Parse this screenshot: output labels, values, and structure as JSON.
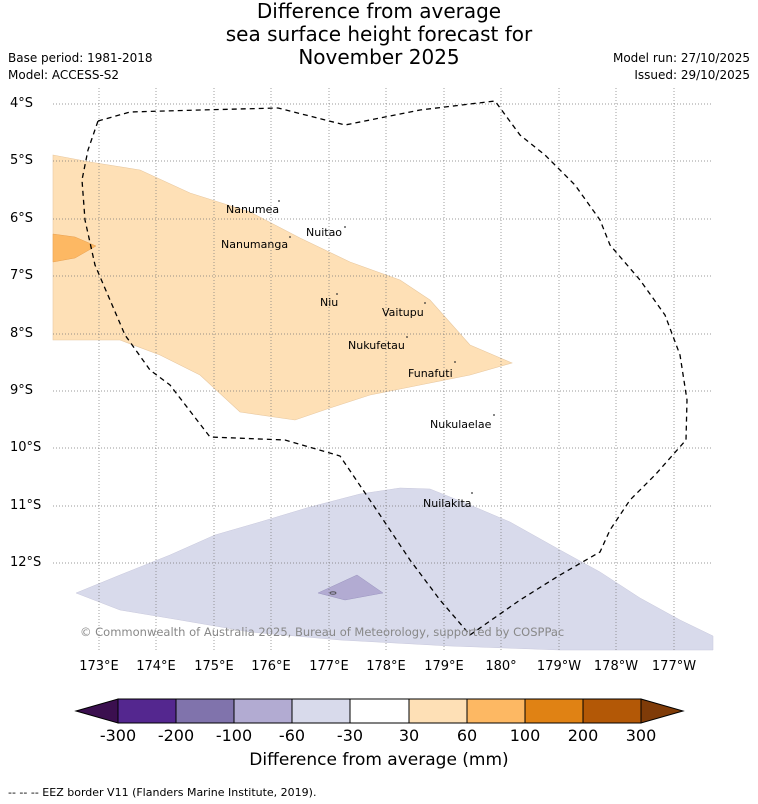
{
  "header": {
    "title_lines": [
      "Difference from average",
      "sea surface height forecast for",
      "November 2025"
    ],
    "base_period": "Base period: 1981-2018",
    "model": "Model: ACCESS-S2",
    "model_run": "Model run: 27/10/2025",
    "issued": "Issued: 29/10/2025"
  },
  "map": {
    "lat_labels": [
      "4°S",
      "5°S",
      "6°S",
      "7°S",
      "8°S",
      "9°S",
      "10°S",
      "11°S",
      "12°S"
    ],
    "lon_labels": [
      "173°E",
      "174°E",
      "175°E",
      "176°E",
      "177°E",
      "178°E",
      "179°E",
      "180°",
      "179°W",
      "178°W",
      "177°W"
    ],
    "places": [
      "Nanumea",
      "Nuitao",
      "Nanumanga",
      "Niu",
      "Vaitupu",
      "Nukufetau",
      "Funafuti",
      "Nukulaelae",
      "Nuilakita"
    ],
    "copyright": "© Commonwealth of Australia 2025, Bureau of Meteorology, supported by COSPPac",
    "eez_line_style": "dashed"
  },
  "colorbar": {
    "ticks": [
      "-300",
      "-200",
      "-100",
      "-60",
      "-30",
      "30",
      "60",
      "100",
      "200",
      "300"
    ],
    "colors": [
      "#3b0f4f",
      "#54278f",
      "#8073ac",
      "#b2abd2",
      "#d8daeb",
      "#ffffff",
      "#fee0b6",
      "#fdb863",
      "#e08214",
      "#b35806",
      "#7f3b08"
    ],
    "title": "Difference from average (mm)"
  },
  "footnote": "--  --  -- EEZ border V11 (Flanders Marine Institute, 2019)."
}
